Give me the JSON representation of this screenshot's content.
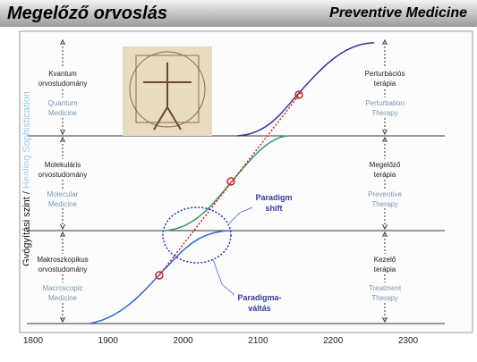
{
  "header": {
    "title": "Megelőző orvoslás",
    "subtitle": "Preventive Medicine"
  },
  "axis": {
    "y_label_hu": "Gyógyítási szint / ",
    "y_label_en": "Healing Sophistication",
    "x_ticks": [
      "1800",
      "1900",
      "2000",
      "2100",
      "2200",
      "2300"
    ]
  },
  "left_levels": [
    {
      "hu": [
        "Kvantum",
        "orvostudomány"
      ],
      "en": [
        "Quantum",
        "Medicine"
      ]
    },
    {
      "hu": [
        "Molekuláris",
        "orvostudomány"
      ],
      "en": [
        "Molecular",
        "Medicine"
      ]
    },
    {
      "hu": [
        "Makroszkopikus",
        "orvostudomány"
      ],
      "en": [
        "Macroscopic",
        "Medicine"
      ]
    }
  ],
  "right_levels": [
    {
      "hu": [
        "Perturbációs",
        "terápia"
      ],
      "en": [
        "Perturbation",
        "Therapy"
      ]
    },
    {
      "hu": [
        "Megelőző",
        "terápia"
      ],
      "en": [
        "Preventive",
        "Therapy"
      ]
    },
    {
      "hu": [
        "Kezelő",
        "terápia"
      ],
      "en": [
        "Treatment",
        "Therapy"
      ]
    }
  ],
  "annotations": {
    "shift_en": [
      "Paradigm",
      "shift"
    ],
    "shift_hu": [
      "Paradigma-",
      "váltás"
    ]
  }
}
